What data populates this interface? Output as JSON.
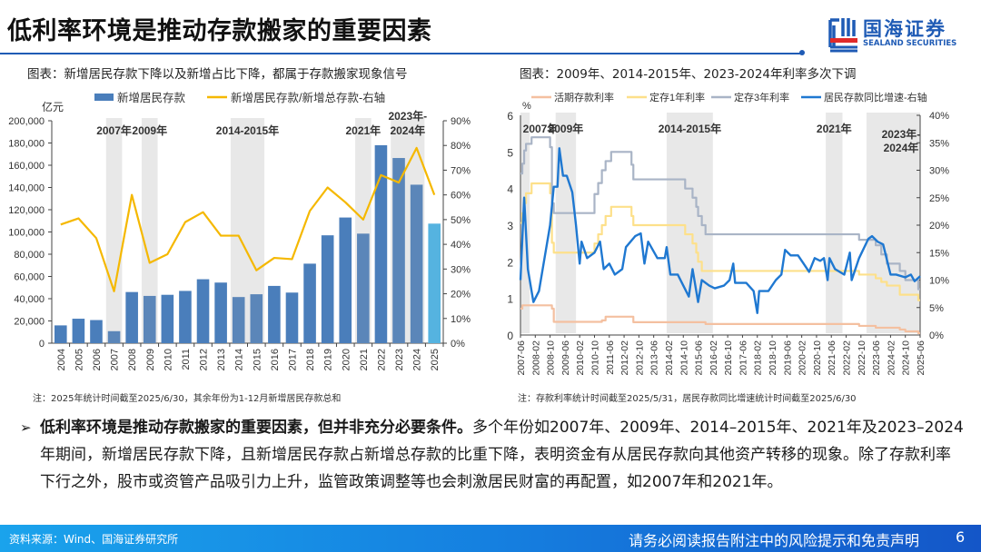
{
  "header": {
    "title": "低利率环境是推动存款搬家的重要因素",
    "logo_cn": "国海证券",
    "logo_en": "SEALAND SECURITIES",
    "accent_color": "#1f5bb5"
  },
  "left_chart": {
    "caption": "图表：新增居民存款下降以及新增占比下降，都属于存款搬家现象信号",
    "note": "注：2025年统计时间截至2025/6/30，其余年份为1-12月新增居民存款总和"
  },
  "right_chart": {
    "caption": "图表：2009年、2014-2015年、2023-2024年利率多次下调",
    "note": "注：存款利率统计时间截至2025/5/31，居民存款同比增速统计时间截至2025/6/30"
  },
  "chart_data": [
    {
      "type": "bar",
      "unit_label": "亿元",
      "categories": [
        "2004",
        "2005",
        "2006",
        "2007",
        "2008",
        "2009",
        "2010",
        "2011",
        "2012",
        "2013",
        "2014",
        "2015",
        "2016",
        "2017",
        "2018",
        "2019",
        "2020",
        "2021",
        "2022",
        "2023",
        "2024",
        "2025"
      ],
      "series": [
        {
          "name": "新增居民存款",
          "type": "bar",
          "axis": "left",
          "color": "#4a7ebb",
          "values": [
            16000,
            22000,
            20800,
            10800,
            46000,
            42500,
            43500,
            47000,
            57500,
            54500,
            41500,
            44000,
            51500,
            45500,
            71500,
            97000,
            113000,
            98500,
            178000,
            166500,
            142500,
            107500
          ]
        },
        {
          "name": "新增居民存款/新增总存款-右轴",
          "type": "line",
          "axis": "right",
          "color": "#f5b800",
          "values": [
            48,
            50.5,
            42.5,
            21,
            60,
            32.5,
            36,
            49,
            53,
            43.5,
            43.5,
            29.5,
            34.5,
            34,
            53.5,
            63,
            57,
            50,
            68,
            65,
            79,
            60
          ]
        }
      ],
      "ylim_left": [
        0,
        200000
      ],
      "yticks_left": [
        "0",
        "20,000",
        "40,000",
        "60,000",
        "80,000",
        "100,000",
        "120,000",
        "140,000",
        "160,000",
        "180,000",
        "200,000"
      ],
      "ylim_right": [
        0,
        90
      ],
      "yticks_right": [
        "0%",
        "10%",
        "20%",
        "30%",
        "40%",
        "50%",
        "60%",
        "70%",
        "80%",
        "90%"
      ],
      "highlight_periods": [
        {
          "label": "2007年",
          "from": "2007",
          "to": "2007"
        },
        {
          "label": "2009年",
          "from": "2009",
          "to": "2009"
        },
        {
          "label": "2014-2015年",
          "from": "2014",
          "to": "2015"
        },
        {
          "label": "2021年",
          "from": "2021",
          "to": "2021"
        },
        {
          "label": "2023年-\n2024年",
          "from": "2023",
          "to": "2024"
        }
      ],
      "highlight_color": "#e8e8e8",
      "bar_colors": {
        "default": "#4a7ebb",
        "highlighted": "#5b86b9",
        "partial_year": "#55b3e0"
      },
      "legend": "top"
    },
    {
      "type": "line",
      "unit_label": "%",
      "x_start": "2007-06",
      "x_end": "2025-06",
      "xticks": [
        "2007-06",
        "2008-02",
        "2008-10",
        "2009-06",
        "2010-02",
        "2010-10",
        "2011-06",
        "2012-02",
        "2012-10",
        "2013-06",
        "2014-02",
        "2014-10",
        "2015-06",
        "2016-02",
        "2016-10",
        "2017-06",
        "2018-02",
        "2018-10",
        "2019-06",
        "2020-02",
        "2020-10",
        "2021-06",
        "2022-02",
        "2022-10",
        "2023-06",
        "2024-02",
        "2024-10",
        "2025-06"
      ],
      "ylim_left": [
        0,
        6
      ],
      "yticks_left": [
        "0",
        "1",
        "2",
        "3",
        "4",
        "5",
        "6"
      ],
      "ylim_right": [
        0,
        40
      ],
      "yticks_right": [
        "0%",
        "5%",
        "10%",
        "15%",
        "20%",
        "25%",
        "30%",
        "35%",
        "40%"
      ],
      "series": [
        {
          "name": "活期存款利率",
          "axis": "left",
          "color": "#f4c0a0",
          "step": true,
          "points": [
            [
              "2007-06",
              0.72
            ],
            [
              "2007-07",
              0.81
            ],
            [
              "2008-11",
              0.72
            ],
            [
              "2008-12",
              0.36
            ],
            [
              "2011-02",
              0.4
            ],
            [
              "2011-04",
              0.5
            ],
            [
              "2012-07",
              0.35
            ],
            [
              "2015-10",
              0.3
            ],
            [
              "2022-09",
              0.25
            ],
            [
              "2023-06",
              0.2
            ],
            [
              "2023-09",
              0.2
            ],
            [
              "2024-07",
              0.15
            ],
            [
              "2024-10",
              0.1
            ],
            [
              "2025-05",
              0.05
            ],
            [
              "2025-06",
              0.05
            ]
          ]
        },
        {
          "name": "定存1年利率",
          "axis": "left",
          "color": "#fde08a",
          "step": true,
          "points": [
            [
              "2007-06",
              3.06
            ],
            [
              "2007-07",
              3.33
            ],
            [
              "2007-08",
              3.6
            ],
            [
              "2007-09",
              3.87
            ],
            [
              "2007-12",
              4.14
            ],
            [
              "2008-10",
              3.87
            ],
            [
              "2008-11",
              2.52
            ],
            [
              "2008-12",
              2.25
            ],
            [
              "2010-10",
              2.5
            ],
            [
              "2010-12",
              2.75
            ],
            [
              "2011-02",
              3.0
            ],
            [
              "2011-04",
              3.25
            ],
            [
              "2011-07",
              3.5
            ],
            [
              "2012-06",
              3.25
            ],
            [
              "2012-07",
              3.0
            ],
            [
              "2014-11",
              2.75
            ],
            [
              "2015-03",
              2.5
            ],
            [
              "2015-05",
              2.25
            ],
            [
              "2015-06",
              2.0
            ],
            [
              "2015-08",
              1.75
            ],
            [
              "2022-09",
              1.65
            ],
            [
              "2023-06",
              1.55
            ],
            [
              "2023-09",
              1.45
            ],
            [
              "2023-12",
              1.35
            ],
            [
              "2024-07",
              1.1
            ],
            [
              "2025-05",
              0.95
            ],
            [
              "2025-06",
              0.95
            ]
          ]
        },
        {
          "name": "定存3年利率",
          "axis": "left",
          "color": "#a9b4c6",
          "step": true,
          "points": [
            [
              "2007-06",
              4.41
            ],
            [
              "2007-07",
              4.68
            ],
            [
              "2007-08",
              5.04
            ],
            [
              "2007-09",
              5.22
            ],
            [
              "2007-12",
              5.4
            ],
            [
              "2008-10",
              5.13
            ],
            [
              "2008-11",
              3.6
            ],
            [
              "2008-12",
              3.33
            ],
            [
              "2010-10",
              3.85
            ],
            [
              "2010-12",
              4.15
            ],
            [
              "2011-02",
              4.5
            ],
            [
              "2011-04",
              4.75
            ],
            [
              "2011-07",
              5.0
            ],
            [
              "2012-06",
              4.65
            ],
            [
              "2012-07",
              4.25
            ],
            [
              "2014-11",
              4.0
            ],
            [
              "2015-03",
              3.75
            ],
            [
              "2015-05",
              3.5
            ],
            [
              "2015-06",
              3.25
            ],
            [
              "2015-08",
              3.0
            ],
            [
              "2015-10",
              2.75
            ],
            [
              "2022-09",
              2.6
            ],
            [
              "2023-06",
              2.45
            ],
            [
              "2023-09",
              2.2
            ],
            [
              "2023-12",
              1.95
            ],
            [
              "2024-07",
              1.75
            ],
            [
              "2024-10",
              1.5
            ],
            [
              "2025-05",
              1.25
            ],
            [
              "2025-06",
              1.25
            ]
          ]
        },
        {
          "name": "居民存款同比增速-右轴",
          "axis": "right",
          "color": "#1f78d1",
          "step": false,
          "points": [
            [
              "2007-06",
              10
            ],
            [
              "2007-08",
              25
            ],
            [
              "2007-10",
              12
            ],
            [
              "2008-01",
              6
            ],
            [
              "2008-04",
              8
            ],
            [
              "2008-07",
              14
            ],
            [
              "2008-10",
              20
            ],
            [
              "2008-12",
              27
            ],
            [
              "2009-02",
              27
            ],
            [
              "2009-03",
              34
            ],
            [
              "2009-05",
              29
            ],
            [
              "2009-07",
              29
            ],
            [
              "2009-10",
              26
            ],
            [
              "2009-12",
              20
            ],
            [
              "2010-02",
              13
            ],
            [
              "2010-03",
              17
            ],
            [
              "2010-06",
              14
            ],
            [
              "2010-10",
              15
            ],
            [
              "2011-01",
              17
            ],
            [
              "2011-03",
              12
            ],
            [
              "2011-06",
              13
            ],
            [
              "2011-09",
              11
            ],
            [
              "2012-01",
              12
            ],
            [
              "2012-03",
              16
            ],
            [
              "2012-08",
              18
            ],
            [
              "2012-11",
              18.5
            ],
            [
              "2013-01",
              13
            ],
            [
              "2013-03",
              17
            ],
            [
              "2013-08",
              14
            ],
            [
              "2013-12",
              14
            ],
            [
              "2014-01",
              16
            ],
            [
              "2014-03",
              11
            ],
            [
              "2014-07",
              11
            ],
            [
              "2014-10",
              9
            ],
            [
              "2015-01",
              7
            ],
            [
              "2015-03",
              12
            ],
            [
              "2015-06",
              6
            ],
            [
              "2015-08",
              10
            ],
            [
              "2015-12",
              9
            ],
            [
              "2016-03",
              8.5
            ],
            [
              "2016-08",
              9
            ],
            [
              "2016-11",
              10
            ],
            [
              "2017-01",
              13
            ],
            [
              "2017-02",
              9.5
            ],
            [
              "2017-08",
              9.5
            ],
            [
              "2017-12",
              8
            ],
            [
              "2018-02",
              4
            ],
            [
              "2018-03",
              8
            ],
            [
              "2018-08",
              8
            ],
            [
              "2018-12",
              10
            ],
            [
              "2019-03",
              11
            ],
            [
              "2019-05",
              15.5
            ],
            [
              "2019-08",
              14.5
            ],
            [
              "2019-12",
              14.5
            ],
            [
              "2020-03",
              13
            ],
            [
              "2020-06",
              11.5
            ],
            [
              "2020-09",
              14
            ],
            [
              "2020-12",
              13.5
            ],
            [
              "2021-02",
              14
            ],
            [
              "2021-04",
              10
            ],
            [
              "2021-05",
              14
            ],
            [
              "2021-08",
              12
            ],
            [
              "2022-01",
              11
            ],
            [
              "2022-04",
              15
            ],
            [
              "2022-05",
              10
            ],
            [
              "2022-09",
              14
            ],
            [
              "2023-02",
              17.5
            ],
            [
              "2023-04",
              18
            ],
            [
              "2023-07",
              17
            ],
            [
              "2023-10",
              16.5
            ],
            [
              "2024-02",
              11
            ],
            [
              "2024-05",
              11
            ],
            [
              "2024-10",
              10.5
            ],
            [
              "2025-01",
              11
            ],
            [
              "2025-03",
              9.8
            ],
            [
              "2025-06",
              10.7
            ]
          ]
        }
      ],
      "highlight_periods": [
        {
          "label": "2007年",
          "from": "2007-06",
          "to": "2007-11"
        },
        {
          "label": "2009年",
          "from": "2009-01",
          "to": "2009-12"
        },
        {
          "label": "2014-2015年",
          "from": "2014-01",
          "to": "2016-02"
        },
        {
          "label": "2021年",
          "from": "2021-03",
          "to": "2021-12"
        },
        {
          "label": "2023年-\n2024年",
          "from": "2023-01",
          "to": "2025-06"
        }
      ],
      "highlight_color": "#e8e8e8",
      "legend": "top"
    }
  ],
  "paragraph": {
    "bullet": "➢",
    "bold": "低利率环境是推动存款搬家的重要因素，但并非充分必要条件。",
    "text": "多个年份如2007年、2009年、2014–2015年、2021年及2023–2024年期间，新增居民存款下降，且新增居民存款占新增总存款的比重下降，表明资金有从居民存款向其他资产转移的现象。除了存款利率下行之外，股市或资管产品吸引力上升，监管政策调整等也会刺激居民财富的再配置，如2007年和2021年。"
  },
  "footer": {
    "source": "资料来源：Wind、国海证券研究所",
    "disclaimer": "请务必阅读报告附注中的风险提示和免责声明",
    "page": "6"
  }
}
